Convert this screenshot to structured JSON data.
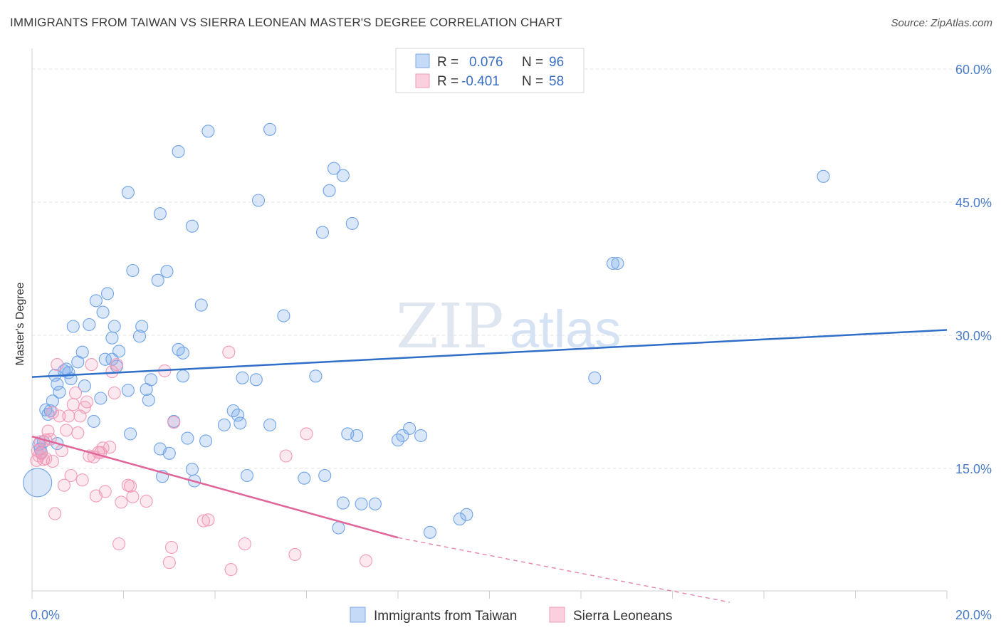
{
  "title": "IMMIGRANTS FROM TAIWAN VS SIERRA LEONEAN MASTER'S DEGREE CORRELATION CHART",
  "source": "Source: ZipAtlas.com",
  "watermark": {
    "zip": "ZIP",
    "atlas": "atlas"
  },
  "chart_data": {
    "type": "scatter",
    "title": "IMMIGRANTS FROM TAIWAN VS SIERRA LEONEAN MASTER'S DEGREE CORRELATION CHART",
    "ylabel": "Master's Degree",
    "xlabel": "",
    "x_ticks": [
      "0.0%",
      "20.0%"
    ],
    "y_ticks": [
      "15.0%",
      "30.0%",
      "45.0%",
      "60.0%"
    ],
    "xlim": [
      0,
      20
    ],
    "ylim": [
      0,
      62
    ],
    "grid": true,
    "legend_position": "top-center",
    "series": [
      {
        "name": "Immigrants from Taiwan",
        "color": "#6fa3e8",
        "trend_color": "#2f6fc8",
        "R": "0.076",
        "N": "96",
        "trend": {
          "x0": 0.0,
          "y0": 25.3,
          "x1": 20.0,
          "y1": 30.6
        },
        "points": [
          [
            0.15,
            17.7
          ],
          [
            0.18,
            17.2
          ],
          [
            0.2,
            16.8
          ],
          [
            0.25,
            18.0
          ],
          [
            0.3,
            21.6
          ],
          [
            0.35,
            21.1
          ],
          [
            0.4,
            21.5
          ],
          [
            0.45,
            22.6
          ],
          [
            0.5,
            25.5
          ],
          [
            0.55,
            24.5
          ],
          [
            0.6,
            23.6
          ],
          [
            0.7,
            26.0
          ],
          [
            0.75,
            26.2
          ],
          [
            0.8,
            25.8
          ],
          [
            0.85,
            25.1
          ],
          [
            0.9,
            31.0
          ],
          [
            1.0,
            27.0
          ],
          [
            1.1,
            28.1
          ],
          [
            1.15,
            24.3
          ],
          [
            1.25,
            31.2
          ],
          [
            1.35,
            20.3
          ],
          [
            1.4,
            33.9
          ],
          [
            1.5,
            22.9
          ],
          [
            1.55,
            32.6
          ],
          [
            1.6,
            27.3
          ],
          [
            1.65,
            34.7
          ],
          [
            1.75,
            29.7
          ],
          [
            1.8,
            31.0
          ],
          [
            1.85,
            26.5
          ],
          [
            1.9,
            28.2
          ],
          [
            2.1,
            23.8
          ],
          [
            2.15,
            18.9
          ],
          [
            2.2,
            37.3
          ],
          [
            2.35,
            29.9
          ],
          [
            2.4,
            31.0
          ],
          [
            2.5,
            23.9
          ],
          [
            2.55,
            22.7
          ],
          [
            2.6,
            25.0
          ],
          [
            2.75,
            36.2
          ],
          [
            2.8,
            17.2
          ],
          [
            2.85,
            14.1
          ],
          [
            2.95,
            37.2
          ],
          [
            3.0,
            16.7
          ],
          [
            3.1,
            20.3
          ],
          [
            3.2,
            28.4
          ],
          [
            3.3,
            25.4
          ],
          [
            3.4,
            18.4
          ],
          [
            3.5,
            14.9
          ],
          [
            3.55,
            13.6
          ],
          [
            3.8,
            18.1
          ],
          [
            3.7,
            33.4
          ],
          [
            3.85,
            53.0
          ],
          [
            3.2,
            50.7
          ],
          [
            2.1,
            46.1
          ],
          [
            2.8,
            43.7
          ],
          [
            3.5,
            42.3
          ],
          [
            4.2,
            19.9
          ],
          [
            4.4,
            21.5
          ],
          [
            4.5,
            21.0
          ],
          [
            4.55,
            20.1
          ],
          [
            4.6,
            25.2
          ],
          [
            4.7,
            14.2
          ],
          [
            4.9,
            25.0
          ],
          [
            4.95,
            45.2
          ],
          [
            5.2,
            19.9
          ],
          [
            5.2,
            53.2
          ],
          [
            5.5,
            32.2
          ],
          [
            5.95,
            13.9
          ],
          [
            6.2,
            25.4
          ],
          [
            6.35,
            41.6
          ],
          [
            6.5,
            46.3
          ],
          [
            6.6,
            48.8
          ],
          [
            6.7,
            8.3
          ],
          [
            6.8,
            48.0
          ],
          [
            6.9,
            18.9
          ],
          [
            7.0,
            42.6
          ],
          [
            7.1,
            18.7
          ],
          [
            7.2,
            11.0
          ],
          [
            6.4,
            14.2
          ],
          [
            6.8,
            11.1
          ],
          [
            7.5,
            11.0
          ],
          [
            8.0,
            18.2
          ],
          [
            8.1,
            18.7
          ],
          [
            8.25,
            19.5
          ],
          [
            8.5,
            18.7
          ],
          [
            8.7,
            7.8
          ],
          [
            9.35,
            9.3
          ],
          [
            9.5,
            9.8
          ],
          [
            12.3,
            25.2
          ],
          [
            12.7,
            38.1
          ],
          [
            12.8,
            38.1
          ],
          [
            17.3,
            47.9
          ],
          [
            3.3,
            28.0
          ],
          [
            1.75,
            27.3
          ],
          [
            0.12,
            13.4
          ],
          [
            0.55,
            17.8
          ]
        ]
      },
      {
        "name": "Sierra Leoneans",
        "color": "#f29ab8",
        "trend_color": "#e0669a",
        "R": "-0.401",
        "N": "58",
        "trend": {
          "x0": 0.0,
          "y0": 18.6,
          "x1": 8.0,
          "y1": 7.2
        },
        "trend_dash_to": {
          "x": 20.0,
          "y": -9.8
        },
        "points": [
          [
            0.1,
            15.9
          ],
          [
            0.12,
            17.0
          ],
          [
            0.15,
            16.4
          ],
          [
            0.2,
            16.7
          ],
          [
            0.25,
            16.0
          ],
          [
            0.3,
            18.2
          ],
          [
            0.35,
            19.2
          ],
          [
            0.4,
            18.3
          ],
          [
            0.45,
            15.8
          ],
          [
            0.5,
            9.9
          ],
          [
            0.55,
            26.7
          ],
          [
            0.6,
            20.9
          ],
          [
            0.65,
            17.0
          ],
          [
            0.7,
            13.1
          ],
          [
            0.75,
            19.3
          ],
          [
            0.8,
            20.9
          ],
          [
            0.85,
            14.2
          ],
          [
            0.9,
            22.2
          ],
          [
            0.95,
            23.5
          ],
          [
            1.0,
            19.0
          ],
          [
            1.05,
            20.9
          ],
          [
            1.1,
            13.7
          ],
          [
            1.15,
            21.9
          ],
          [
            1.2,
            22.5
          ],
          [
            1.25,
            16.4
          ],
          [
            1.3,
            26.7
          ],
          [
            1.35,
            16.3
          ],
          [
            1.4,
            11.9
          ],
          [
            1.45,
            16.8
          ],
          [
            1.5,
            16.8
          ],
          [
            1.55,
            17.3
          ],
          [
            1.6,
            12.4
          ],
          [
            1.7,
            17.4
          ],
          [
            1.75,
            25.9
          ],
          [
            1.8,
            23.5
          ],
          [
            1.85,
            26.7
          ],
          [
            1.9,
            6.5
          ],
          [
            1.95,
            11.2
          ],
          [
            2.1,
            13.1
          ],
          [
            2.15,
            13.0
          ],
          [
            2.2,
            11.8
          ],
          [
            2.5,
            11.3
          ],
          [
            2.9,
            26.0
          ],
          [
            3.0,
            4.4
          ],
          [
            3.05,
            6.1
          ],
          [
            3.1,
            20.2
          ],
          [
            3.75,
            9.1
          ],
          [
            3.85,
            9.2
          ],
          [
            4.3,
            28.1
          ],
          [
            4.35,
            3.6
          ],
          [
            4.65,
            6.5
          ],
          [
            5.55,
            16.4
          ],
          [
            5.75,
            5.3
          ],
          [
            6.0,
            18.9
          ],
          [
            7.3,
            4.6
          ],
          [
            0.3,
            16.1
          ],
          [
            0.45,
            21.3
          ],
          [
            0.18,
            18.0
          ]
        ]
      }
    ]
  },
  "legend": {
    "r_label": "R =",
    "n_label": "N =",
    "rows": [
      {
        "r": "0.076",
        "n": "96"
      },
      {
        "r": "-0.401",
        "n": "58"
      }
    ]
  },
  "bottom_legend": [
    "Immigrants from Taiwan",
    "Sierra Leoneans"
  ]
}
